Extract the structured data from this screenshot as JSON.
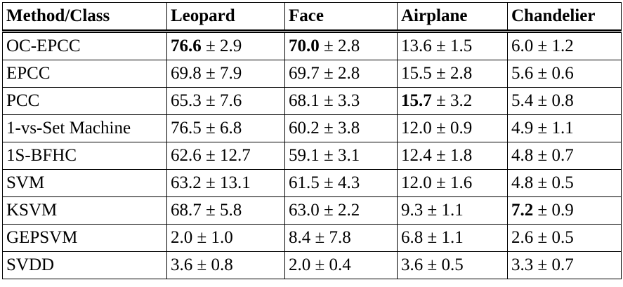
{
  "table": {
    "header": [
      "Method/Class",
      "Leopard",
      "Face",
      "Airplane",
      "Chandelier"
    ],
    "rows": [
      [
        "OC-EPCC",
        {
          "value": "76.6",
          "error": "± 2.9",
          "bold": true
        },
        {
          "value": "70.0",
          "error": "± 2.8",
          "bold": true
        },
        {
          "value": "13.6",
          "error": "± 1.5",
          "bold": false
        },
        {
          "value": "6.0",
          "error": "± 1.2",
          "bold": false
        }
      ],
      [
        "EPCC",
        {
          "value": "69.8",
          "error": "± 7.9",
          "bold": false
        },
        {
          "value": "69.7",
          "error": "± 2.8",
          "bold": false
        },
        {
          "value": "15.5",
          "error": "± 2.8",
          "bold": false
        },
        {
          "value": "5.6",
          "error": "± 0.6",
          "bold": false
        }
      ],
      [
        "PCC",
        {
          "value": "65.3",
          "error": "± 7.6",
          "bold": false
        },
        {
          "value": "68.1",
          "error": "± 3.3",
          "bold": false
        },
        {
          "value": "15.7",
          "error": "± 3.2",
          "bold": true
        },
        {
          "value": "5.4",
          "error": "± 0.8",
          "bold": false
        }
      ],
      [
        "1-vs-Set Machine",
        {
          "value": "76.5",
          "error": "± 6.8",
          "bold": false
        },
        {
          "value": "60.2",
          "error": "± 3.8",
          "bold": false
        },
        {
          "value": "12.0",
          "error": "± 0.9",
          "bold": false
        },
        {
          "value": "4.9",
          "error": "± 1.1",
          "bold": false
        }
      ],
      [
        "1S-BFHC",
        {
          "value": "62.6",
          "error": "± 12.7",
          "bold": false
        },
        {
          "value": "59.1",
          "error": "± 3.1",
          "bold": false
        },
        {
          "value": "12.4",
          "error": "± 1.8",
          "bold": false
        },
        {
          "value": "4.8",
          "error": "± 0.7",
          "bold": false
        }
      ],
      [
        "SVM",
        {
          "value": "63.2",
          "error": "± 13.1",
          "bold": false
        },
        {
          "value": "61.5",
          "error": "± 4.3",
          "bold": false
        },
        {
          "value": "12.0",
          "error": "± 1.6",
          "bold": false
        },
        {
          "value": "4.8",
          "error": "± 0.5",
          "bold": false
        }
      ],
      [
        "KSVM",
        {
          "value": "68.7",
          "error": "± 5.8",
          "bold": false
        },
        {
          "value": "63.0",
          "error": "± 2.2",
          "bold": false
        },
        {
          "value": "9.3",
          "error": "± 1.1",
          "bold": false
        },
        {
          "value": "7.2",
          "error": "± 0.9",
          "bold": true
        }
      ],
      [
        "GEPSVM",
        {
          "value": "2.0",
          "error": "± 1.0",
          "bold": false
        },
        {
          "value": "8.4",
          "error": "± 7.8",
          "bold": false
        },
        {
          "value": "6.8",
          "error": "± 1.1",
          "bold": false
        },
        {
          "value": "2.6",
          "error": "± 0.5",
          "bold": false
        }
      ],
      [
        "SVDD",
        {
          "value": "3.6",
          "error": "± 0.8",
          "bold": false
        },
        {
          "value": "2.0",
          "error": "± 0.4",
          "bold": false
        },
        {
          "value": "3.6",
          "error": "± 0.5",
          "bold": false
        },
        {
          "value": "3.3",
          "error": "± 0.7",
          "bold": false
        }
      ]
    ]
  }
}
